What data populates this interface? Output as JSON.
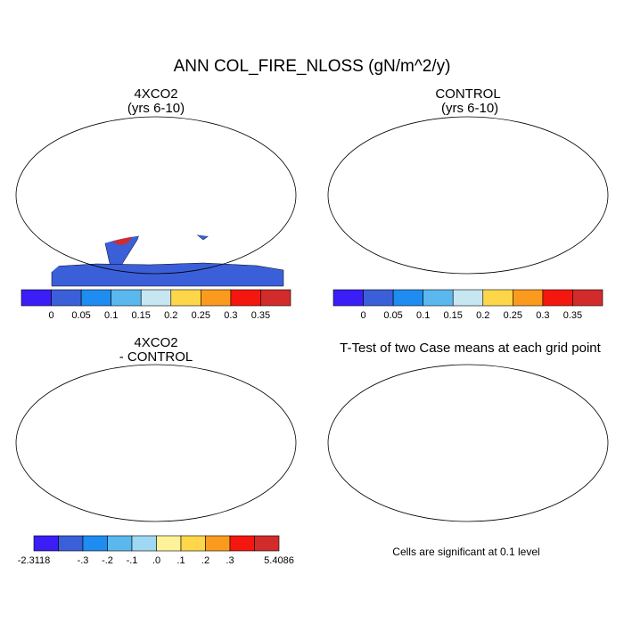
{
  "figure": {
    "title": "ANN COL_FIRE_NLOSS (gN/m^2/y)"
  },
  "panels": {
    "top_left": {
      "title": "4XCO2\n(yrs 6-10)"
    },
    "top_right": {
      "title": "CONTROL\n (yrs 6-10)"
    },
    "bottom_left": {
      "title": "4XCO2\n- CONTROL"
    },
    "bottom_right": {
      "title": "T-Test of two Case means at each grid point",
      "footnote": "Cells are significant at 0.1 level"
    }
  },
  "colorbars": {
    "top": {
      "colors": [
        "#3a1ef5",
        "#3a5fd9",
        "#1e8cf0",
        "#5ab8ee",
        "#c6e6f2",
        "#fdd64a",
        "#fb9b1d",
        "#f4170f",
        "#d12b2b"
      ],
      "labels": [
        "0",
        "0.05",
        "0.1",
        "0.15",
        "0.2",
        "0.25",
        "0.3",
        "0.35"
      ]
    },
    "diff": {
      "colors": [
        "#3a1ef5",
        "#3a5fd9",
        "#1e8cf0",
        "#5ab8ee",
        "#9fd8f2",
        "#fdf29a",
        "#fdd64a",
        "#fb9b1d",
        "#f4170f",
        "#d12b2b"
      ],
      "labels": [
        "-2.3118",
        "-.3",
        "-.2",
        "-.1",
        ".0",
        ".1",
        ".2",
        ".3",
        "5.4086"
      ]
    }
  },
  "map_colors": {
    "ocean": "#ffffff",
    "fire_low": "#3a5fd9",
    "fire_high": "#d12b2b",
    "fire_mid": "#fb9b1d",
    "diff_base": "#fdf29a",
    "diff_neg": "#5ab8ee",
    "diff_strong_neg": "#3a1ef5",
    "significant": "#f4170f"
  },
  "chart_data": [
    {
      "type": "heatmap",
      "title": "4XCO2 (yrs 6-10)",
      "field": "ANN COL_FIRE_NLOSS (gN/m^2/y)",
      "levels": [
        0,
        0.05,
        0.1,
        0.15,
        0.2,
        0.25,
        0.3,
        0.35
      ],
      "projection": "Robinson"
    },
    {
      "type": "heatmap",
      "title": "CONTROL (yrs 6-10)",
      "field": "ANN COL_FIRE_NLOSS (gN/m^2/y)",
      "levels": [
        0,
        0.05,
        0.1,
        0.15,
        0.2,
        0.25,
        0.3,
        0.35
      ],
      "projection": "Robinson"
    },
    {
      "type": "heatmap",
      "title": "4XCO2 - CONTROL",
      "levels": [
        -0.3,
        -0.2,
        -0.1,
        0.0,
        0.1,
        0.2,
        0.3
      ],
      "min": -2.3118,
      "max": 5.4086,
      "projection": "Robinson"
    },
    {
      "type": "heatmap",
      "title": "T-Test of two Case means at each grid point",
      "significance_level": 0.1,
      "projection": "Robinson"
    }
  ]
}
